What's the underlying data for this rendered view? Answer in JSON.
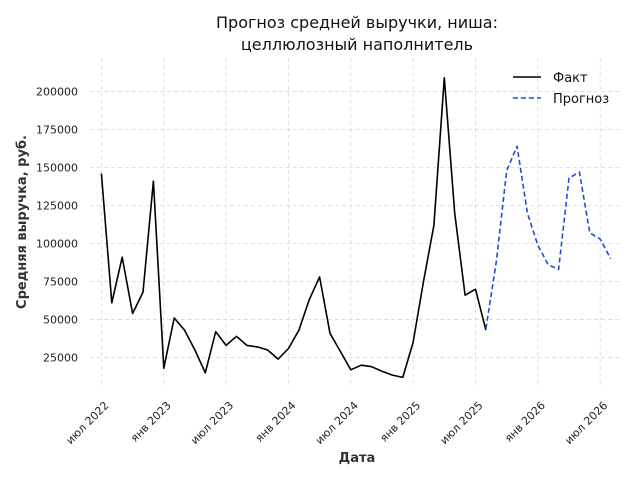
{
  "chart_data": {
    "type": "line",
    "title_lines": [
      "Прогноз средней выручки, ниша:",
      "целлюлозный наполнитель"
    ],
    "xlabel": "Дата",
    "ylabel": "Средняя выручка, руб.",
    "x_ticks": [
      "июл 2022",
      "янв 2023",
      "июл 2023",
      "янв 2024",
      "июл 2024",
      "янв 2025",
      "июл 2025",
      "янв 2026",
      "июл 2026"
    ],
    "y_ticks": [
      "25000",
      "50000",
      "75000",
      "100000",
      "125000",
      "150000",
      "175000",
      "200000"
    ],
    "ylim": [
      5000,
      222000
    ],
    "grid": true,
    "legend_position": "top-right",
    "series": [
      {
        "name": "Факт",
        "color": "#000000",
        "style": "solid",
        "points": [
          [
            "2022-07",
            146000
          ],
          [
            "2022-08",
            61000
          ],
          [
            "2022-09",
            91000
          ],
          [
            "2022-10",
            54000
          ],
          [
            "2022-11",
            68000
          ],
          [
            "2022-12",
            141000
          ],
          [
            "2023-01",
            18000
          ],
          [
            "2023-02",
            51000
          ],
          [
            "2023-03",
            43000
          ],
          [
            "2023-04",
            30000
          ],
          [
            "2023-05",
            15000
          ],
          [
            "2023-06",
            42000
          ],
          [
            "2023-07",
            33000
          ],
          [
            "2023-08",
            39000
          ],
          [
            "2023-09",
            33000
          ],
          [
            "2023-10",
            32000
          ],
          [
            "2023-11",
            30000
          ],
          [
            "2023-12",
            24000
          ],
          [
            "2024-01",
            31000
          ],
          [
            "2024-02",
            43000
          ],
          [
            "2024-03",
            63000
          ],
          [
            "2024-04",
            78000
          ],
          [
            "2024-05",
            41000
          ],
          [
            "2024-06",
            29000
          ],
          [
            "2024-07",
            17000
          ],
          [
            "2024-08",
            20000
          ],
          [
            "2024-09",
            19000
          ],
          [
            "2024-10",
            16000
          ],
          [
            "2024-11",
            13500
          ],
          [
            "2024-12",
            12000
          ],
          [
            "2025-01",
            35000
          ],
          [
            "2025-02",
            75000
          ],
          [
            "2025-03",
            112000
          ],
          [
            "2025-04",
            209000
          ],
          [
            "2025-05",
            120000
          ],
          [
            "2025-06",
            66000
          ],
          [
            "2025-07",
            70000
          ],
          [
            "2025-08",
            43000
          ]
        ]
      },
      {
        "name": "Прогноз",
        "color": "#1f4fd1",
        "style": "dashed",
        "points": [
          [
            "2025-08",
            44000
          ],
          [
            "2025-09",
            88000
          ],
          [
            "2025-10",
            148000
          ],
          [
            "2025-11",
            164000
          ],
          [
            "2025-12",
            120000
          ],
          [
            "2026-01",
            99000
          ],
          [
            "2026-02",
            86000
          ],
          [
            "2026-03",
            83000
          ],
          [
            "2026-04",
            143000
          ],
          [
            "2026-05",
            147000
          ],
          [
            "2026-06",
            107000
          ],
          [
            "2026-07",
            103000
          ],
          [
            "2026-08",
            90000
          ]
        ]
      }
    ]
  }
}
